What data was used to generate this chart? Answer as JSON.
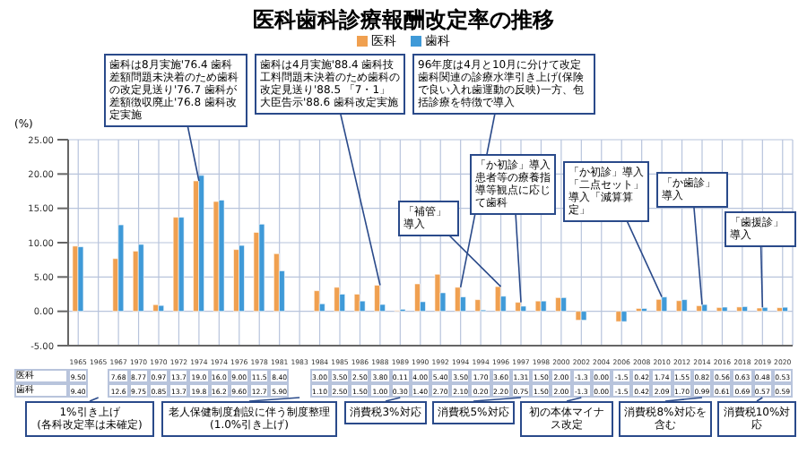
{
  "chart_data": {
    "type": "bar",
    "title": "医科歯科診療報酬改定率の推移",
    "ylabel": "(%)",
    "categories": [
      "1965",
      "1965",
      "1967",
      "1970",
      "1970",
      "1972",
      "1974",
      "1974",
      "1976",
      "1978",
      "1981",
      "1983",
      "1984",
      "1985",
      "1986",
      "1988",
      "1989",
      "1990",
      "1992",
      "1994",
      "1994",
      "1996",
      "1997",
      "1998",
      "2000",
      "2002",
      "2004",
      "2006",
      "2008",
      "2010",
      "2012",
      "2014",
      "2016",
      "2018",
      "2019",
      "2020"
    ],
    "series": [
      {
        "name": "医科",
        "color": "#f0a050",
        "values": [
          9.5,
          null,
          7.68,
          8.77,
          0.97,
          13.7,
          19.0,
          16.0,
          9.0,
          11.5,
          8.4,
          null,
          3.0,
          3.5,
          2.5,
          3.8,
          0.11,
          4.0,
          5.4,
          3.5,
          1.7,
          3.6,
          1.31,
          1.5,
          2.0,
          -1.3,
          0.0,
          -1.5,
          0.42,
          1.74,
          1.55,
          0.82,
          0.56,
          0.63,
          0.48,
          0.53
        ],
        "value_labels": [
          "9.50",
          null,
          "7.68",
          "8.77",
          "0.97",
          "13.7",
          "19.0",
          "16.0",
          "9.00",
          "11.5",
          "8.40",
          null,
          "3.00",
          "3.50",
          "2.50",
          "3.80",
          "0.11",
          "4.00",
          "5.40",
          "3.50",
          "1.70",
          "3.60",
          "1.31",
          "1.50",
          "2.00",
          "-1.3",
          "0.00",
          "-1.5",
          "0.42",
          "1.74",
          "1.55",
          "0.82",
          "0.56",
          "0.63",
          "0.48",
          "0.53"
        ]
      },
      {
        "name": "歯科",
        "color": "#3f9ad8",
        "values": [
          9.4,
          null,
          12.6,
          9.75,
          0.85,
          13.7,
          19.8,
          16.2,
          9.6,
          12.7,
          5.9,
          null,
          1.1,
          2.5,
          1.5,
          1.0,
          0.3,
          1.4,
          2.7,
          2.1,
          0.2,
          2.2,
          0.75,
          1.5,
          2.0,
          -1.3,
          0.0,
          -1.5,
          0.42,
          2.09,
          1.7,
          0.99,
          0.61,
          0.69,
          0.57,
          0.59
        ],
        "value_labels": [
          "9.40",
          null,
          "12.6",
          "9.75",
          "0.85",
          "13.7",
          "19.8",
          "16.2",
          "9.60",
          "12.7",
          "5.90",
          null,
          "1.10",
          "2.50",
          "1.50",
          "1.00",
          "0.30",
          "1.40",
          "2.70",
          "2.10",
          "0.20",
          "2.20",
          "0.75",
          "1.50",
          "2.00",
          "-1.3",
          "0.00",
          "-1.5",
          "0.42",
          "2.09",
          "1.70",
          "0.99",
          "0.61",
          "0.69",
          "0.57",
          "0.59"
        ]
      }
    ],
    "ylim": [
      -5,
      25
    ],
    "yticks": [
      {
        "value": -5,
        "label": "-5.00"
      },
      {
        "value": 0,
        "label": "0.00"
      },
      {
        "value": 5,
        "label": "5.00"
      },
      {
        "value": 10,
        "label": "10.00"
      },
      {
        "value": 15,
        "label": "15.00"
      },
      {
        "value": 20,
        "label": "20.00"
      },
      {
        "value": 25,
        "label": "25.00"
      }
    ],
    "grid": true,
    "legend": "top",
    "annotations": [
      {
        "text": "歯科は8月実施'76.4 歯科差額問題未決着のため歯科の改定見送り'76.7 歯科が差額徴収廃止'76.8 歯科改定実施",
        "x": "1974",
        "y": 19
      },
      {
        "text": "歯科は4月実施'88.4 歯科技工料問題未決着のため歯科の改定見送り'88.5 「7・1」大臣告示'88.6 歯科改定実施",
        "x": "1988",
        "y": 3.8
      },
      {
        "text": "96年度は4月と10月に分けて改定歯科関連の診療水準引き上げ(保険で良い入れ歯運動の反映)一方、包括診療を特徴で導入",
        "x": "1994",
        "y": 3.5
      },
      {
        "text": "「補管」導入",
        "x": "1996",
        "y": 3.6
      },
      {
        "text": "「か初診」導入患者等の療養指導等観点に応じて歯科",
        "x": "1997",
        "y": 1.31
      },
      {
        "text": "「か初診」導入「二点セット」導入「減算算定」",
        "x": "2010",
        "y": 2.09
      },
      {
        "text": "「か歯診」導入",
        "x": "2014",
        "y": 0.99
      },
      {
        "text": "「歯援診」導入",
        "x": "2019",
        "y": 0.57
      },
      "1%引き上げ\n(各科改定率は未確定)",
      "老人保健制度創設に伴う制度整理\n(1.0%引き上げ)",
      "消費税3%対応",
      "消費税5%対応",
      "初の本体マイナス改定",
      "消費税8%対応を含む",
      "消費税10%対応"
    ]
  }
}
